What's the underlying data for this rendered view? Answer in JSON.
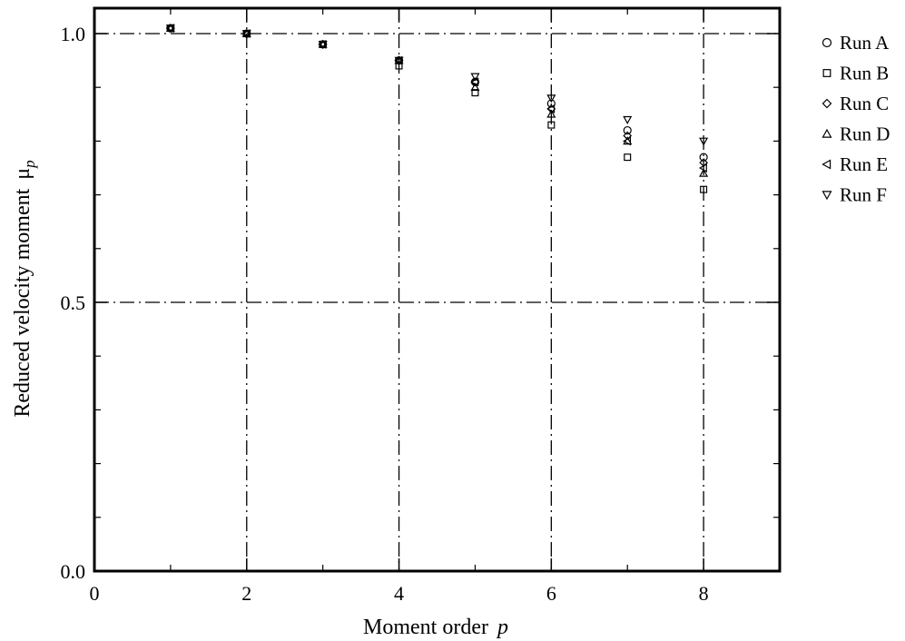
{
  "chart_data": {
    "type": "scatter",
    "title": "",
    "xlabel": "Moment order",
    "xlabel_symbol": "p",
    "ylabel": "Reduced velocity moment",
    "ylabel_symbol": "μ",
    "ylabel_subscript": "p",
    "xlim": [
      0,
      9
    ],
    "ylim": [
      0,
      1.05
    ],
    "xticks": [
      "0",
      "2",
      "4",
      "6",
      "8"
    ],
    "yticks": [
      "0.0",
      "0.5",
      "1.0"
    ],
    "grid": "dash-dot at major ticks",
    "legend": "right, outside plot",
    "series": [
      {
        "name": "Run A",
        "marker": "circle",
        "x": [
          1,
          2,
          3,
          4,
          5,
          6,
          7,
          8
        ],
        "y": [
          1.01,
          1.0,
          0.98,
          0.95,
          0.91,
          0.87,
          0.82,
          0.77
        ]
      },
      {
        "name": "Run B",
        "marker": "square",
        "x": [
          1,
          2,
          3,
          4,
          5,
          6,
          7,
          8
        ],
        "y": [
          1.01,
          1.0,
          0.98,
          0.94,
          0.89,
          0.83,
          0.77,
          0.71
        ]
      },
      {
        "name": "Run C",
        "marker": "diamond",
        "x": [
          1,
          2,
          3,
          4,
          5,
          6,
          7,
          8
        ],
        "y": [
          1.01,
          1.0,
          0.98,
          0.95,
          0.91,
          0.86,
          0.81,
          0.76
        ]
      },
      {
        "name": "Run D",
        "marker": "triangle-up",
        "x": [
          1,
          2,
          3,
          4,
          5,
          6,
          7,
          8
        ],
        "y": [
          1.01,
          1.0,
          0.98,
          0.95,
          0.9,
          0.85,
          0.8,
          0.74
        ]
      },
      {
        "name": "Run E",
        "marker": "triangle-left",
        "x": [
          1,
          2,
          3,
          4,
          5,
          6,
          7,
          8
        ],
        "y": [
          1.01,
          1.0,
          0.98,
          0.95,
          0.91,
          0.86,
          0.8,
          0.75
        ]
      },
      {
        "name": "Run F",
        "marker": "triangle-down",
        "x": [
          1,
          2,
          3,
          4,
          5,
          6,
          7,
          8
        ],
        "y": [
          1.01,
          1.0,
          0.98,
          0.95,
          0.92,
          0.88,
          0.84,
          0.8
        ]
      }
    ]
  }
}
